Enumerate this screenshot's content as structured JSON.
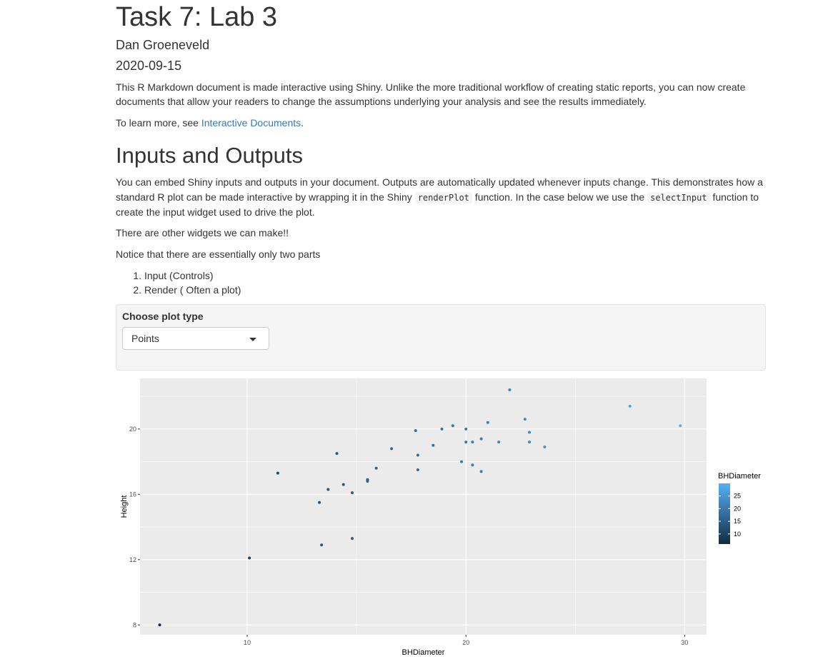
{
  "doc": {
    "title": "Task 7: Lab 3",
    "author": "Dan Groeneveld",
    "date": "2020-09-15",
    "intro": "This R Markdown document is made interactive using Shiny. Unlike the more traditional workflow of creating static reports, you can now create documents that allow your readers to change the assumptions underlying your analysis and see the results immediately.",
    "learn_more_prefix": "To learn more, see ",
    "learn_more_link": "Interactive Documents",
    "learn_more_suffix": "."
  },
  "section": {
    "heading": "Inputs and Outputs",
    "p1_a": "You can embed Shiny inputs and outputs in your document. Outputs are automatically updated whenever inputs change. This demonstrates how a standard R plot can be made interactive by wrapping it in the Shiny ",
    "p1_code1": "renderPlot",
    "p1_b": " function. In the case below we use the ",
    "p1_code2": "selectInput",
    "p1_c": " function to create the input widget used to drive the plot.",
    "p2": "There are other widgets we can make!!",
    "p3": "Notice that there are essentially only two parts",
    "list": [
      "Input (Controls)",
      "Render ( Often a plot)"
    ]
  },
  "control": {
    "label": "Choose plot type",
    "selected": "Points"
  },
  "chart_data": {
    "type": "scatter",
    "xlabel": "BHDiameter",
    "ylabel": "Height",
    "xlim": [
      5.1,
      31
    ],
    "ylim": [
      7.4,
      23.1
    ],
    "x_ticks": [
      10,
      20,
      30
    ],
    "y_ticks": [
      8,
      12,
      16,
      20
    ],
    "grid": true,
    "legend": {
      "title": "BHDiameter",
      "placement": "right",
      "ticks": [
        10,
        15,
        20,
        25
      ],
      "range": [
        6,
        30
      ],
      "low_color": "#132B43",
      "high_color": "#56B1F7"
    },
    "points": [
      {
        "x": 6.0,
        "y": 8.0
      },
      {
        "x": 10.1,
        "y": 12.1
      },
      {
        "x": 11.4,
        "y": 17.3
      },
      {
        "x": 13.3,
        "y": 15.5
      },
      {
        "x": 13.4,
        "y": 12.9
      },
      {
        "x": 13.7,
        "y": 16.3
      },
      {
        "x": 14.1,
        "y": 18.5
      },
      {
        "x": 14.4,
        "y": 16.6
      },
      {
        "x": 14.8,
        "y": 16.1
      },
      {
        "x": 14.8,
        "y": 13.3
      },
      {
        "x": 15.5,
        "y": 16.9
      },
      {
        "x": 15.5,
        "y": 16.8
      },
      {
        "x": 15.9,
        "y": 17.6
      },
      {
        "x": 16.6,
        "y": 18.8
      },
      {
        "x": 17.7,
        "y": 19.9
      },
      {
        "x": 17.8,
        "y": 18.4
      },
      {
        "x": 17.8,
        "y": 17.5
      },
      {
        "x": 18.5,
        "y": 19.0
      },
      {
        "x": 18.9,
        "y": 20.0
      },
      {
        "x": 19.4,
        "y": 20.2
      },
      {
        "x": 19.8,
        "y": 18.0
      },
      {
        "x": 20.0,
        "y": 20.0
      },
      {
        "x": 20.0,
        "y": 19.2
      },
      {
        "x": 20.3,
        "y": 19.2
      },
      {
        "x": 20.3,
        "y": 17.8
      },
      {
        "x": 20.7,
        "y": 19.4
      },
      {
        "x": 20.7,
        "y": 17.4
      },
      {
        "x": 21.0,
        "y": 20.4
      },
      {
        "x": 21.5,
        "y": 19.2
      },
      {
        "x": 22.0,
        "y": 22.4
      },
      {
        "x": 22.7,
        "y": 20.6
      },
      {
        "x": 22.9,
        "y": 19.8
      },
      {
        "x": 22.9,
        "y": 19.2
      },
      {
        "x": 23.6,
        "y": 18.9
      },
      {
        "x": 27.5,
        "y": 21.4
      },
      {
        "x": 29.8,
        "y": 20.2
      }
    ]
  }
}
